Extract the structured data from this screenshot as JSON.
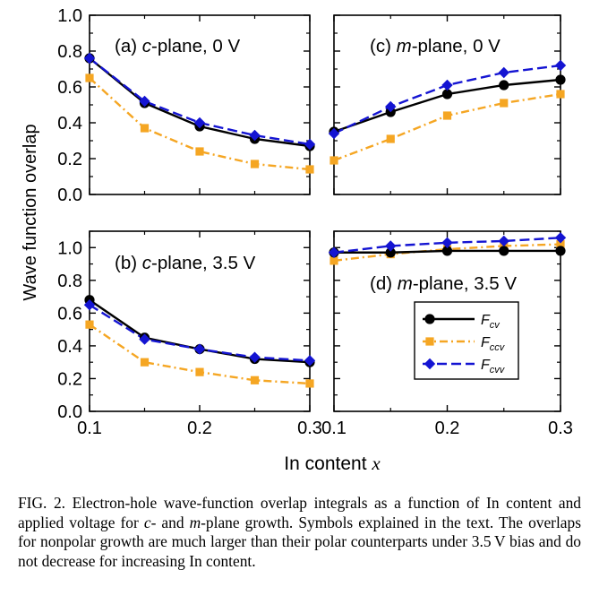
{
  "figure": {
    "ylabel": "Wave function overlap",
    "xlabel_prefix": "In content ",
    "xlabel_var": "x",
    "x_ticks": [
      "0.1",
      "0.2",
      "0.3"
    ],
    "legend": [
      {
        "name": "F",
        "sub": "cv",
        "color": "#000000",
        "marker": "circle",
        "dash": "solid"
      },
      {
        "name": "F",
        "sub": "ccv",
        "color": "#f5a623",
        "marker": "square",
        "dash": "dashdot"
      },
      {
        "name": "F",
        "sub": "cvv",
        "color": "#1414d2",
        "marker": "diamond",
        "dash": "dashed"
      }
    ],
    "colors": {
      "cv": "#000000",
      "ccv": "#f5a623",
      "cvv": "#1414d2"
    }
  },
  "chart_data": [
    {
      "type": "line",
      "panel": "a",
      "title_prefix": "(a) ",
      "title_var": "c",
      "title_suffix": "-plane, 0 V",
      "x": [
        0.1,
        0.15,
        0.2,
        0.25,
        0.3
      ],
      "ylim": [
        0,
        1.0
      ],
      "yticks": [
        "0.0",
        "0.2",
        "0.4",
        "0.6",
        "0.8",
        "1.0"
      ],
      "series": [
        {
          "key": "cv",
          "values": [
            0.76,
            0.51,
            0.38,
            0.31,
            0.27
          ]
        },
        {
          "key": "ccv",
          "values": [
            0.65,
            0.37,
            0.24,
            0.17,
            0.14
          ]
        },
        {
          "key": "cvv",
          "values": [
            0.76,
            0.52,
            0.4,
            0.33,
            0.28
          ]
        }
      ]
    },
    {
      "type": "line",
      "panel": "b",
      "title_prefix": "(b) ",
      "title_var": "c",
      "title_suffix": "-plane, 3.5 V",
      "x": [
        0.1,
        0.15,
        0.2,
        0.25,
        0.3
      ],
      "ylim": [
        0,
        1.1
      ],
      "yticks": [
        "0.0",
        "0.2",
        "0.4",
        "0.6",
        "0.8",
        "1.0"
      ],
      "series": [
        {
          "key": "cv",
          "values": [
            0.68,
            0.45,
            0.38,
            0.32,
            0.3
          ]
        },
        {
          "key": "ccv",
          "values": [
            0.53,
            0.3,
            0.24,
            0.19,
            0.17
          ]
        },
        {
          "key": "cvv",
          "values": [
            0.65,
            0.44,
            0.38,
            0.33,
            0.31
          ]
        }
      ]
    },
    {
      "type": "line",
      "panel": "c",
      "title_prefix": "(c) ",
      "title_var": "m",
      "title_suffix": "-plane, 0 V",
      "x": [
        0.1,
        0.15,
        0.2,
        0.25,
        0.3
      ],
      "ylim": [
        0,
        1.0
      ],
      "series": [
        {
          "key": "cv",
          "values": [
            0.35,
            0.46,
            0.56,
            0.61,
            0.64
          ]
        },
        {
          "key": "ccv",
          "values": [
            0.19,
            0.31,
            0.44,
            0.51,
            0.56
          ]
        },
        {
          "key": "cvv",
          "values": [
            0.34,
            0.49,
            0.61,
            0.68,
            0.72
          ]
        }
      ]
    },
    {
      "type": "line",
      "panel": "d",
      "title_prefix": "(d) ",
      "title_var": "m",
      "title_suffix": "-plane, 3.5 V",
      "x": [
        0.1,
        0.15,
        0.2,
        0.25,
        0.3
      ],
      "ylim": [
        0,
        1.1
      ],
      "series": [
        {
          "key": "cv",
          "values": [
            0.97,
            0.97,
            0.98,
            0.98,
            0.98
          ]
        },
        {
          "key": "ccv",
          "values": [
            0.92,
            0.96,
            0.99,
            1.01,
            1.02
          ]
        },
        {
          "key": "cvv",
          "values": [
            0.97,
            1.01,
            1.03,
            1.04,
            1.06
          ]
        }
      ]
    }
  ],
  "caption": {
    "label": "FIG. 2.",
    "text_html": "Electron-hole wave-function overlap integrals as a function of In content and applied voltage for <i>c</i>- and <i>m</i>-plane growth. Symbols explained in the text. The overlaps for nonpolar growth are much larger than their polar counterparts under 3.5 V bias and do not decrease for increasing In content."
  }
}
